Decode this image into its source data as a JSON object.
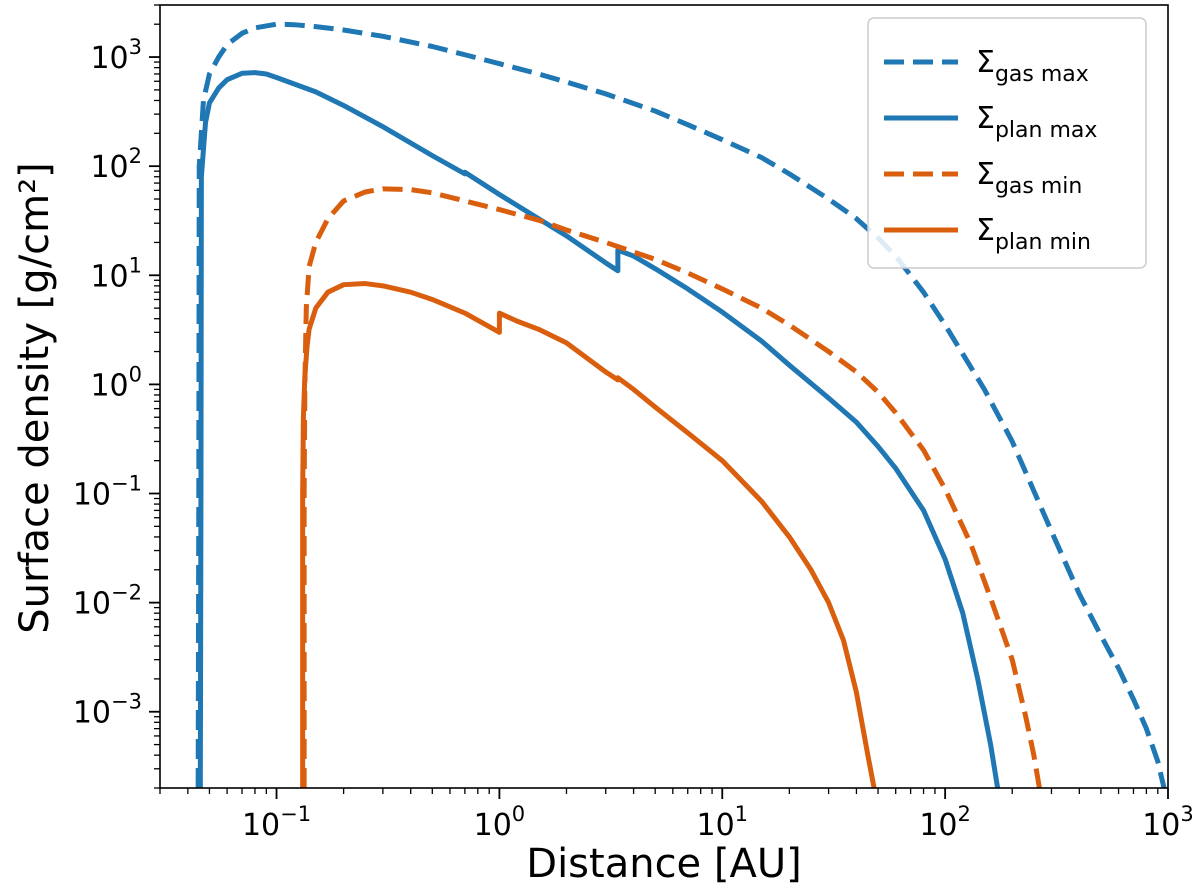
{
  "chart_data": {
    "type": "line",
    "xlabel": "Distance [AU]",
    "ylabel": "Surface density [g/cm²]",
    "xscale": "log",
    "yscale": "log",
    "xlim": [
      0.03,
      1000
    ],
    "ylim": [
      0.0002,
      3000
    ],
    "grid": false,
    "legend_position": "top-right",
    "x_ticks": [
      {
        "value": 0.1,
        "base": "10",
        "exp": "−1"
      },
      {
        "value": 1,
        "base": "10",
        "exp": "0"
      },
      {
        "value": 10,
        "base": "10",
        "exp": "1"
      },
      {
        "value": 100,
        "base": "10",
        "exp": "2"
      },
      {
        "value": 1000,
        "base": "10",
        "exp": "3"
      }
    ],
    "y_ticks": [
      {
        "value": 0.001,
        "base": "10",
        "exp": "−3"
      },
      {
        "value": 0.01,
        "base": "10",
        "exp": "−2"
      },
      {
        "value": 0.1,
        "base": "10",
        "exp": "−1"
      },
      {
        "value": 1,
        "base": "10",
        "exp": "0"
      },
      {
        "value": 10,
        "base": "10",
        "exp": "1"
      },
      {
        "value": 100,
        "base": "10",
        "exp": "2"
      },
      {
        "value": 1000,
        "base": "10",
        "exp": "3"
      }
    ],
    "series": [
      {
        "name": "Σgas max",
        "symbol": "Σ",
        "subscript": "gas max",
        "color": "#1f77b4",
        "dashed": true,
        "points": [
          [
            0.0445,
            0.0002
          ],
          [
            0.0448,
            0.1
          ],
          [
            0.045,
            100
          ],
          [
            0.047,
            400
          ],
          [
            0.05,
            700
          ],
          [
            0.055,
            1000
          ],
          [
            0.06,
            1300
          ],
          [
            0.07,
            1650
          ],
          [
            0.08,
            1850
          ],
          [
            0.1,
            2000
          ],
          [
            0.12,
            1980
          ],
          [
            0.15,
            1900
          ],
          [
            0.2,
            1770
          ],
          [
            0.3,
            1550
          ],
          [
            0.5,
            1250
          ],
          [
            0.7,
            1050
          ],
          [
            1,
            870
          ],
          [
            1.5,
            700
          ],
          [
            2,
            590
          ],
          [
            3,
            460
          ],
          [
            5,
            320
          ],
          [
            7,
            240
          ],
          [
            10,
            175
          ],
          [
            15,
            120
          ],
          [
            20,
            85
          ],
          [
            30,
            50
          ],
          [
            40,
            33
          ],
          [
            50,
            22
          ],
          [
            60,
            15
          ],
          [
            70,
            10
          ],
          [
            80,
            7
          ],
          [
            100,
            3.5
          ],
          [
            150,
            0.9
          ],
          [
            200,
            0.3
          ],
          [
            300,
            0.045
          ],
          [
            400,
            0.012
          ],
          [
            500,
            0.005
          ],
          [
            600,
            0.0025
          ],
          [
            700,
            0.0013
          ],
          [
            800,
            0.0007
          ],
          [
            900,
            0.00035
          ],
          [
            960,
            0.0002
          ]
        ]
      },
      {
        "name": "Σplan max",
        "symbol": "Σ",
        "subscript": "plan max",
        "color": "#1f77b4",
        "dashed": false,
        "points": [
          [
            0.0455,
            0.0002
          ],
          [
            0.0458,
            0.1
          ],
          [
            0.046,
            80
          ],
          [
            0.048,
            250
          ],
          [
            0.05,
            380
          ],
          [
            0.055,
            520
          ],
          [
            0.06,
            620
          ],
          [
            0.07,
            710
          ],
          [
            0.08,
            720
          ],
          [
            0.09,
            700
          ],
          [
            0.1,
            650
          ],
          [
            0.15,
            480
          ],
          [
            0.2,
            360
          ],
          [
            0.3,
            230
          ],
          [
            0.5,
            125
          ],
          [
            0.7,
            85
          ],
          [
            0.7,
            88
          ],
          [
            1,
            55
          ],
          [
            1.5,
            33
          ],
          [
            2,
            23
          ],
          [
            3,
            13
          ],
          [
            3.4,
            11
          ],
          [
            3.4,
            17
          ],
          [
            4,
            15
          ],
          [
            5,
            11.5
          ],
          [
            7,
            7.5
          ],
          [
            10,
            4.6
          ],
          [
            15,
            2.5
          ],
          [
            20,
            1.5
          ],
          [
            30,
            0.75
          ],
          [
            35,
            0.57
          ],
          [
            40,
            0.45
          ],
          [
            50,
            0.27
          ],
          [
            60,
            0.17
          ],
          [
            80,
            0.07
          ],
          [
            100,
            0.025
          ],
          [
            120,
            0.008
          ],
          [
            140,
            0.002
          ],
          [
            160,
            0.0005
          ],
          [
            172,
            0.0002
          ]
        ]
      },
      {
        "name": "Σgas min",
        "symbol": "Σ",
        "subscript": "gas min",
        "color": "#d95f0e",
        "dashed": true,
        "points": [
          [
            0.133,
            0.0002
          ],
          [
            0.133,
            0.1
          ],
          [
            0.134,
            1
          ],
          [
            0.136,
            5
          ],
          [
            0.14,
            12
          ],
          [
            0.15,
            20
          ],
          [
            0.17,
            33
          ],
          [
            0.2,
            48
          ],
          [
            0.25,
            58
          ],
          [
            0.3,
            62
          ],
          [
            0.4,
            61
          ],
          [
            0.5,
            57
          ],
          [
            0.7,
            48
          ],
          [
            1,
            40
          ],
          [
            1.5,
            32
          ],
          [
            2,
            26
          ],
          [
            3,
            20
          ],
          [
            5,
            14
          ],
          [
            7,
            10.5
          ],
          [
            10,
            7.5
          ],
          [
            15,
            5
          ],
          [
            20,
            3.5
          ],
          [
            30,
            2
          ],
          [
            40,
            1.3
          ],
          [
            50,
            0.85
          ],
          [
            60,
            0.55
          ],
          [
            80,
            0.25
          ],
          [
            100,
            0.11
          ],
          [
            130,
            0.035
          ],
          [
            160,
            0.011
          ],
          [
            200,
            0.003
          ],
          [
            230,
            0.0009
          ],
          [
            250,
            0.0004
          ],
          [
            265,
            0.0002
          ]
        ]
      },
      {
        "name": "Σplan min",
        "symbol": "Σ",
        "subscript": "plan min",
        "color": "#d95f0e",
        "dashed": false,
        "points": [
          [
            0.131,
            0.0002
          ],
          [
            0.131,
            0.1
          ],
          [
            0.132,
            0.5
          ],
          [
            0.134,
            1.2
          ],
          [
            0.137,
            2.2
          ],
          [
            0.14,
            3.2
          ],
          [
            0.15,
            5
          ],
          [
            0.17,
            7
          ],
          [
            0.2,
            8.2
          ],
          [
            0.25,
            8.4
          ],
          [
            0.3,
            8
          ],
          [
            0.4,
            7
          ],
          [
            0.5,
            6
          ],
          [
            0.7,
            4.5
          ],
          [
            1,
            3
          ],
          [
            1,
            4.5
          ],
          [
            1.2,
            3.8
          ],
          [
            1.5,
            3.2
          ],
          [
            2,
            2.4
          ],
          [
            3,
            1.3
          ],
          [
            3.4,
            1.1
          ],
          [
            3.4,
            1.15
          ],
          [
            4,
            0.9
          ],
          [
            5,
            0.62
          ],
          [
            7,
            0.36
          ],
          [
            10,
            0.2
          ],
          [
            15,
            0.085
          ],
          [
            20,
            0.04
          ],
          [
            25,
            0.02
          ],
          [
            30,
            0.01
          ],
          [
            35,
            0.0045
          ],
          [
            40,
            0.0015
          ],
          [
            45,
            0.0004
          ],
          [
            48,
            0.0002
          ]
        ]
      }
    ]
  }
}
